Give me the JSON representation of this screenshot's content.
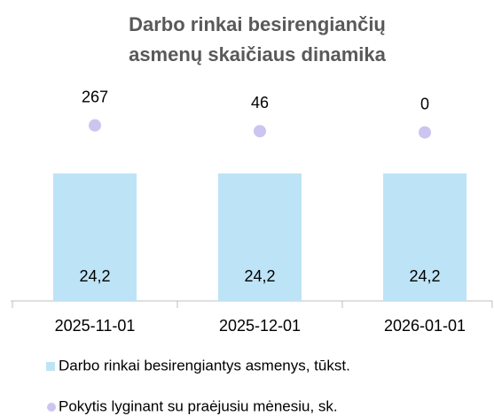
{
  "chart_data": {
    "type": "bar_dot",
    "title": [
      "Darbo rinkai besirengiančių",
      "asmenų skaičiaus dinamika"
    ],
    "categories": [
      "2025-11-01",
      "2025-12-01",
      "2026-01-01"
    ],
    "series": [
      {
        "name": "Darbo rinkai besirengiantys asmenys, tūkst.",
        "color": "#bde3f6",
        "values": [
          24.2,
          24.2,
          24.2
        ],
        "value_labels": [
          "24,2",
          "24,2",
          "24,2"
        ]
      },
      {
        "name": "Pokytis lyginant su praėjusiu mėnesiu, sk.",
        "color": "#cbc5f0",
        "values": [
          267,
          46,
          0
        ],
        "axis": "y2"
      }
    ],
    "ylim": [
      0,
      40
    ],
    "y2lim": [
      -6400,
      1600
    ]
  }
}
